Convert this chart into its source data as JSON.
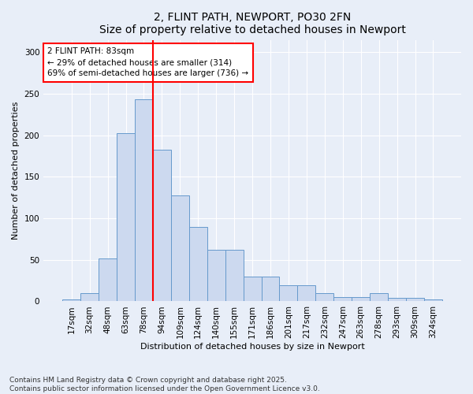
{
  "title1": "2, FLINT PATH, NEWPORT, PO30 2FN",
  "title2": "Size of property relative to detached houses in Newport",
  "xlabel": "Distribution of detached houses by size in Newport",
  "ylabel": "Number of detached properties",
  "categories": [
    "17sqm",
    "32sqm",
    "48sqm",
    "63sqm",
    "78sqm",
    "94sqm",
    "109sqm",
    "124sqm",
    "140sqm",
    "155sqm",
    "171sqm",
    "186sqm",
    "201sqm",
    "217sqm",
    "232sqm",
    "247sqm",
    "263sqm",
    "278sqm",
    "293sqm",
    "309sqm",
    "324sqm"
  ],
  "values": [
    2,
    10,
    52,
    203,
    243,
    183,
    128,
    90,
    62,
    62,
    30,
    30,
    19,
    19,
    10,
    5,
    5,
    10,
    4,
    4,
    2
  ],
  "bar_color": "#ccd9ef",
  "bar_edge_color": "#6699cc",
  "vline_position": 4.5,
  "vline_color": "red",
  "annotation_text": "2 FLINT PATH: 83sqm\n← 29% of detached houses are smaller (314)\n69% of semi-detached houses are larger (736) →",
  "annotation_box_color": "white",
  "annotation_box_edge": "red",
  "ylim": [
    0,
    315
  ],
  "yticks": [
    0,
    50,
    100,
    150,
    200,
    250,
    300
  ],
  "footer1": "Contains HM Land Registry data © Crown copyright and database right 2025.",
  "footer2": "Contains public sector information licensed under the Open Government Licence v3.0.",
  "bg_color": "#e8eef8",
  "plot_bg_color": "#e8eef8",
  "title_fontsize": 10,
  "axis_label_fontsize": 8,
  "tick_fontsize": 7.5,
  "footer_fontsize": 6.5
}
